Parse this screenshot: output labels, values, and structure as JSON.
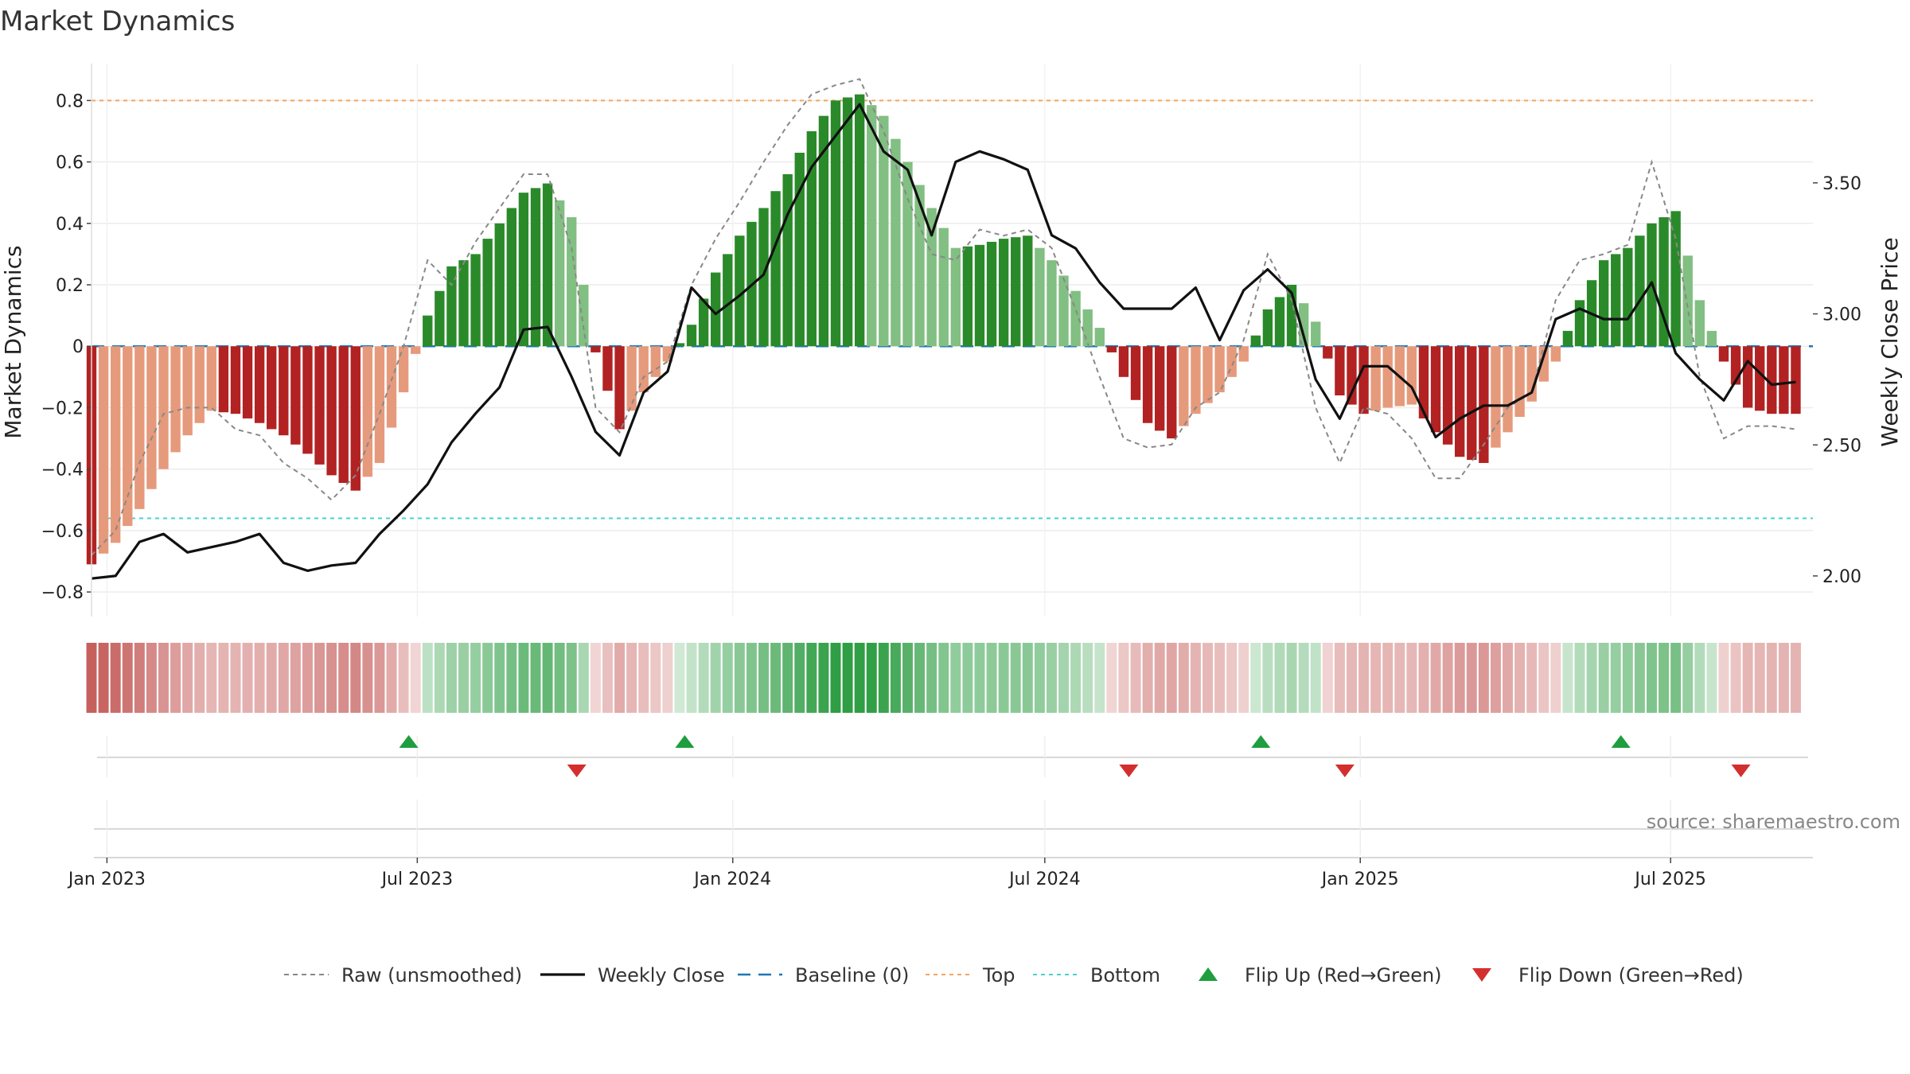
{
  "chart_data": {
    "type": "bar",
    "title": "Market Dynamics",
    "ylabel": "Market Dynamics",
    "y2label": "Weekly Close Price",
    "ylim": [
      -0.88,
      0.92
    ],
    "y2lim": [
      1.845,
      3.955
    ],
    "yticks": [
      -0.8,
      -0.6,
      -0.4,
      -0.2,
      0,
      0.2,
      0.4,
      0.6,
      0.8
    ],
    "y2ticks": [
      2.0,
      2.5,
      3.0,
      3.5
    ],
    "x_range": [
      "2022-12-23",
      "2025-09-22"
    ],
    "xticks": [
      {
        "date": "2023-01-01",
        "label": "Jan 2023"
      },
      {
        "date": "2023-07-01",
        "label": "Jul 2023"
      },
      {
        "date": "2024-01-01",
        "label": "Jan 2024"
      },
      {
        "date": "2024-07-01",
        "label": "Jul 2024"
      },
      {
        "date": "2025-01-01",
        "label": "Jan 2025"
      },
      {
        "date": "2025-07-01",
        "label": "Jul 2025"
      }
    ],
    "hlines": {
      "baseline": 0,
      "top": 0.8,
      "bottom": -0.56
    },
    "anchors": [
      {
        "date": "2022-12-23",
        "smoothed": -0.71,
        "raw": -0.68,
        "close": 1.99
      },
      {
        "date": "2023-01-06",
        "smoothed": -0.64,
        "raw": -0.6,
        "close": 2.0
      },
      {
        "date": "2023-01-20",
        "smoothed": -0.53,
        "raw": -0.38,
        "close": 2.13
      },
      {
        "date": "2023-02-03",
        "smoothed": -0.4,
        "raw": -0.22,
        "close": 2.16
      },
      {
        "date": "2023-02-17",
        "smoothed": -0.29,
        "raw": -0.2,
        "close": 2.09
      },
      {
        "date": "2023-03-03",
        "smoothed": -0.21,
        "raw": -0.2,
        "close": 2.11
      },
      {
        "date": "2023-03-17",
        "smoothed": -0.22,
        "raw": -0.27,
        "close": 2.13
      },
      {
        "date": "2023-03-31",
        "smoothed": -0.25,
        "raw": -0.29,
        "close": 2.16
      },
      {
        "date": "2023-04-14",
        "smoothed": -0.29,
        "raw": -0.38,
        "close": 2.05
      },
      {
        "date": "2023-04-28",
        "smoothed": -0.35,
        "raw": -0.43,
        "close": 2.02
      },
      {
        "date": "2023-05-12",
        "smoothed": -0.42,
        "raw": -0.5,
        "close": 2.04
      },
      {
        "date": "2023-05-26",
        "smoothed": -0.47,
        "raw": -0.42,
        "close": 2.05
      },
      {
        "date": "2023-06-09",
        "smoothed": -0.38,
        "raw": -0.22,
        "close": 2.16
      },
      {
        "date": "2023-06-23",
        "smoothed": -0.15,
        "raw": 0.0,
        "close": 2.25
      },
      {
        "date": "2023-07-07",
        "smoothed": 0.1,
        "raw": 0.28,
        "close": 2.35
      },
      {
        "date": "2023-07-21",
        "smoothed": 0.26,
        "raw": 0.2,
        "close": 2.51
      },
      {
        "date": "2023-08-04",
        "smoothed": 0.3,
        "raw": 0.34,
        "close": 2.62
      },
      {
        "date": "2023-08-18",
        "smoothed": 0.4,
        "raw": 0.45,
        "close": 2.72
      },
      {
        "date": "2023-09-01",
        "smoothed": 0.5,
        "raw": 0.56,
        "close": 2.94
      },
      {
        "date": "2023-09-15",
        "smoothed": 0.53,
        "raw": 0.56,
        "close": 2.95
      },
      {
        "date": "2023-09-29",
        "smoothed": 0.42,
        "raw": 0.32,
        "close": 2.76
      },
      {
        "date": "2023-10-13",
        "smoothed": -0.02,
        "raw": -0.2,
        "close": 2.55
      },
      {
        "date": "2023-10-27",
        "smoothed": -0.27,
        "raw": -0.28,
        "close": 2.46
      },
      {
        "date": "2023-11-10",
        "smoothed": -0.15,
        "raw": -0.1,
        "close": 2.7
      },
      {
        "date": "2023-11-24",
        "smoothed": -0.05,
        "raw": -0.05,
        "close": 2.78
      },
      {
        "date": "2023-12-08",
        "smoothed": 0.07,
        "raw": 0.2,
        "close": 3.1
      },
      {
        "date": "2023-12-22",
        "smoothed": 0.24,
        "raw": 0.35,
        "close": 3.0
      },
      {
        "date": "2024-01-05",
        "smoothed": 0.36,
        "raw": 0.47,
        "close": 3.07
      },
      {
        "date": "2024-01-19",
        "smoothed": 0.45,
        "raw": 0.6,
        "close": 3.15
      },
      {
        "date": "2024-02-02",
        "smoothed": 0.56,
        "raw": 0.72,
        "close": 3.38
      },
      {
        "date": "2024-02-16",
        "smoothed": 0.7,
        "raw": 0.82,
        "close": 3.56
      },
      {
        "date": "2024-03-01",
        "smoothed": 0.8,
        "raw": 0.85,
        "close": 3.68
      },
      {
        "date": "2024-03-15",
        "smoothed": 0.82,
        "raw": 0.87,
        "close": 3.8
      },
      {
        "date": "2024-03-29",
        "smoothed": 0.75,
        "raw": 0.7,
        "close": 3.62
      },
      {
        "date": "2024-04-12",
        "smoothed": 0.6,
        "raw": 0.48,
        "close": 3.55
      },
      {
        "date": "2024-04-26",
        "smoothed": 0.45,
        "raw": 0.3,
        "close": 3.3
      },
      {
        "date": "2024-05-10",
        "smoothed": 0.32,
        "raw": 0.28,
        "close": 3.58
      },
      {
        "date": "2024-05-24",
        "smoothed": 0.33,
        "raw": 0.38,
        "close": 3.62
      },
      {
        "date": "2024-06-07",
        "smoothed": 0.35,
        "raw": 0.36,
        "close": 3.59
      },
      {
        "date": "2024-06-21",
        "smoothed": 0.36,
        "raw": 0.38,
        "close": 3.55
      },
      {
        "date": "2024-07-05",
        "smoothed": 0.28,
        "raw": 0.32,
        "close": 3.3
      },
      {
        "date": "2024-07-19",
        "smoothed": 0.18,
        "raw": 0.12,
        "close": 3.25
      },
      {
        "date": "2024-08-02",
        "smoothed": 0.06,
        "raw": -0.1,
        "close": 3.12
      },
      {
        "date": "2024-08-16",
        "smoothed": -0.1,
        "raw": -0.3,
        "close": 3.02
      },
      {
        "date": "2024-08-30",
        "smoothed": -0.25,
        "raw": -0.33,
        "close": 3.02
      },
      {
        "date": "2024-09-13",
        "smoothed": -0.3,
        "raw": -0.32,
        "close": 3.02
      },
      {
        "date": "2024-09-27",
        "smoothed": -0.22,
        "raw": -0.2,
        "close": 3.1
      },
      {
        "date": "2024-10-11",
        "smoothed": -0.15,
        "raw": -0.15,
        "close": 2.9
      },
      {
        "date": "2024-10-25",
        "smoothed": -0.05,
        "raw": 0.02,
        "close": 3.09
      },
      {
        "date": "2024-11-08",
        "smoothed": 0.12,
        "raw": 0.3,
        "close": 3.17
      },
      {
        "date": "2024-11-22",
        "smoothed": 0.2,
        "raw": 0.15,
        "close": 3.08
      },
      {
        "date": "2024-12-06",
        "smoothed": 0.08,
        "raw": -0.2,
        "close": 2.75
      },
      {
        "date": "2024-12-20",
        "smoothed": -0.16,
        "raw": -0.38,
        "close": 2.6
      },
      {
        "date": "2025-01-03",
        "smoothed": -0.22,
        "raw": -0.2,
        "close": 2.8
      },
      {
        "date": "2025-01-17",
        "smoothed": -0.2,
        "raw": -0.22,
        "close": 2.8
      },
      {
        "date": "2025-01-31",
        "smoothed": -0.19,
        "raw": -0.3,
        "close": 2.72
      },
      {
        "date": "2025-02-14",
        "smoothed": -0.28,
        "raw": -0.43,
        "close": 2.53
      },
      {
        "date": "2025-02-28",
        "smoothed": -0.36,
        "raw": -0.43,
        "close": 2.6
      },
      {
        "date": "2025-03-14",
        "smoothed": -0.38,
        "raw": -0.32,
        "close": 2.65
      },
      {
        "date": "2025-03-28",
        "smoothed": -0.28,
        "raw": -0.2,
        "close": 2.65
      },
      {
        "date": "2025-04-11",
        "smoothed": -0.18,
        "raw": -0.15,
        "close": 2.7
      },
      {
        "date": "2025-04-25",
        "smoothed": -0.05,
        "raw": 0.15,
        "close": 2.98
      },
      {
        "date": "2025-05-09",
        "smoothed": 0.15,
        "raw": 0.28,
        "close": 3.02
      },
      {
        "date": "2025-05-23",
        "smoothed": 0.28,
        "raw": 0.3,
        "close": 2.98
      },
      {
        "date": "2025-06-06",
        "smoothed": 0.32,
        "raw": 0.33,
        "close": 2.98
      },
      {
        "date": "2025-06-20",
        "smoothed": 0.4,
        "raw": 0.6,
        "close": 3.12
      },
      {
        "date": "2025-07-04",
        "smoothed": 0.44,
        "raw": 0.35,
        "close": 2.85
      },
      {
        "date": "2025-07-18",
        "smoothed": 0.15,
        "raw": -0.1,
        "close": 2.75
      },
      {
        "date": "2025-08-01",
        "smoothed": -0.05,
        "raw": -0.3,
        "close": 2.67
      },
      {
        "date": "2025-08-15",
        "smoothed": -0.2,
        "raw": -0.26,
        "close": 2.82
      },
      {
        "date": "2025-08-29",
        "smoothed": -0.22,
        "raw": -0.26,
        "close": 2.73
      },
      {
        "date": "2025-09-12",
        "smoothed": -0.22,
        "raw": -0.27,
        "close": 2.74
      }
    ],
    "flips_up": [
      "2023-06-26",
      "2023-12-04",
      "2024-11-04",
      "2025-06-02"
    ],
    "flips_down": [
      "2023-10-02",
      "2024-08-19",
      "2024-12-23",
      "2025-08-11"
    ],
    "colors": {
      "bull_strong": "#2a8a2a",
      "bull_weak": "#82bf82",
      "bear_strong": "#b22222",
      "bear_weak": "#e69a7c",
      "close": "#111111",
      "raw": "#888888",
      "baseline": "#1f77b4",
      "top": "#f4a460",
      "bottom": "#48d1cc",
      "flip_up": "#1e9e3e",
      "flip_down": "#d32f2f",
      "strip_green": "#2f9e44",
      "strip_red": "#c0504d"
    },
    "legend": [
      {
        "key": "raw",
        "label": "Raw (unsmoothed)"
      },
      {
        "key": "close",
        "label": "Weekly Close"
      },
      {
        "key": "baseline",
        "label": "Baseline (0)"
      },
      {
        "key": "top",
        "label": "Top"
      },
      {
        "key": "bottom",
        "label": "Bottom"
      },
      {
        "key": "flip_up",
        "label": "Flip Up (Red→Green)"
      },
      {
        "key": "flip_down",
        "label": "Flip Down (Green→Red)"
      }
    ],
    "legend_position": "bottom-center",
    "source": "source: sharemaestro.com"
  }
}
